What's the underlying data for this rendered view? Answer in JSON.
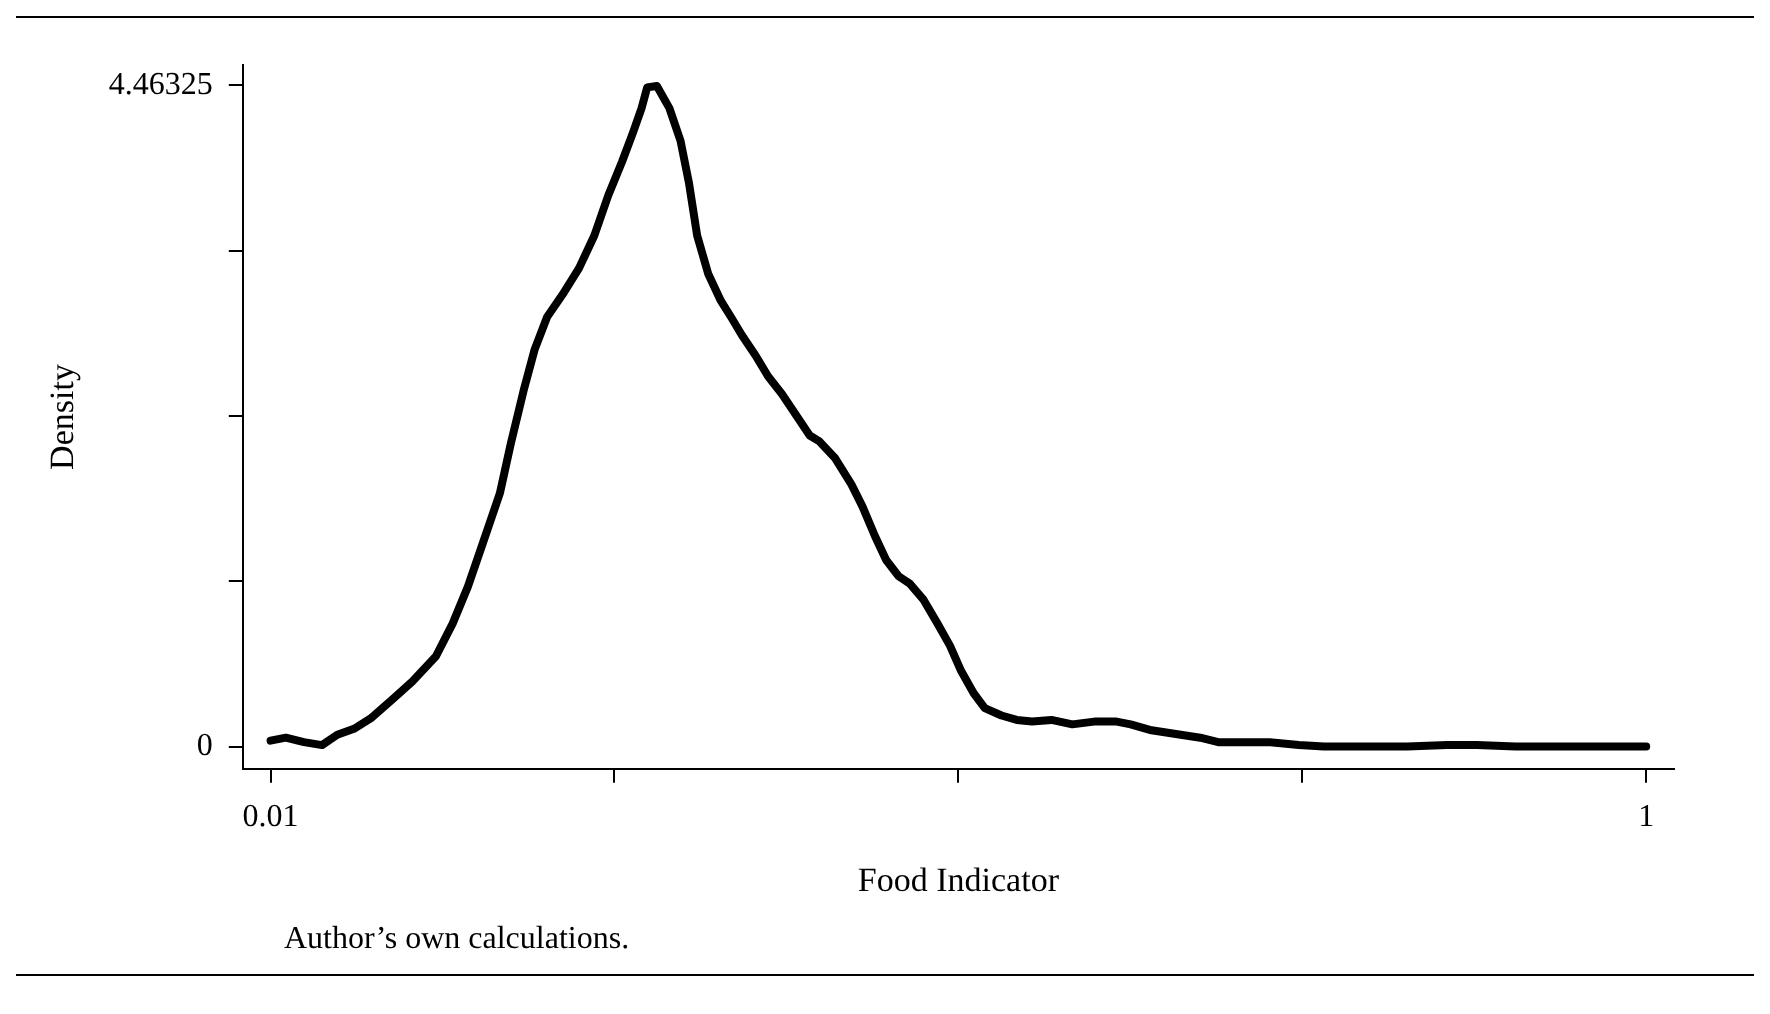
{
  "chart_data": {
    "type": "line",
    "xlabel": "Food Indicator",
    "ylabel": "Density",
    "annotations": [
      "Author’s own calculations."
    ],
    "xlim": [
      -0.01,
      1.02
    ],
    "ylim": [
      -0.15,
      4.6
    ],
    "xticks": [
      0.01,
      {
        "value": 0.2575,
        "label": null
      },
      {
        "value": 0.505,
        "label": null
      },
      {
        "value": 0.7525,
        "label": null
      },
      1
    ],
    "yticks": [
      0,
      {
        "value": 1.1158125,
        "label": null
      },
      {
        "value": 2.231625,
        "label": null
      },
      {
        "value": 3.3474375,
        "label": null
      },
      4.46325
    ],
    "grid": false,
    "legend": false,
    "marker": "none",
    "line_style": "solid",
    "series": [
      {
        "color": "#000000",
        "x": [
          0.01,
          0.021,
          0.034,
          0.047,
          0.058,
          0.07,
          0.082,
          0.099,
          0.112,
          0.129,
          0.141,
          0.152,
          0.163,
          0.175,
          0.183,
          0.192,
          0.2,
          0.209,
          0.22,
          0.232,
          0.243,
          0.253,
          0.263,
          0.271,
          0.277,
          0.281,
          0.288,
          0.297,
          0.305,
          0.311,
          0.317,
          0.325,
          0.334,
          0.342,
          0.349,
          0.359,
          0.368,
          0.378,
          0.388,
          0.398,
          0.405,
          0.416,
          0.428,
          0.436,
          0.445,
          0.453,
          0.462,
          0.47,
          0.48,
          0.49,
          0.499,
          0.507,
          0.516,
          0.524,
          0.536,
          0.547,
          0.558,
          0.572,
          0.587,
          0.604,
          0.618,
          0.629,
          0.644,
          0.665,
          0.679,
          0.692,
          0.707,
          0.729,
          0.75,
          0.768,
          0.8,
          0.828,
          0.857,
          0.878,
          0.906,
          0.942,
          0.977,
          1.0
        ],
        "values": [
          0.04,
          0.06,
          0.03,
          0.01,
          0.08,
          0.12,
          0.19,
          0.33,
          0.44,
          0.61,
          0.83,
          1.08,
          1.38,
          1.71,
          2.05,
          2.4,
          2.68,
          2.9,
          3.05,
          3.23,
          3.45,
          3.72,
          3.95,
          4.15,
          4.31,
          4.45,
          4.46,
          4.31,
          4.09,
          3.81,
          3.45,
          3.19,
          3.01,
          2.89,
          2.78,
          2.64,
          2.5,
          2.38,
          2.24,
          2.1,
          2.06,
          1.95,
          1.77,
          1.62,
          1.42,
          1.26,
          1.15,
          1.1,
          0.99,
          0.83,
          0.68,
          0.51,
          0.36,
          0.26,
          0.21,
          0.18,
          0.17,
          0.18,
          0.15,
          0.17,
          0.17,
          0.15,
          0.11,
          0.08,
          0.06,
          0.03,
          0.03,
          0.03,
          0.01,
          0,
          0,
          0,
          0.01,
          0.01,
          0,
          0,
          0,
          0
        ]
      }
    ]
  }
}
